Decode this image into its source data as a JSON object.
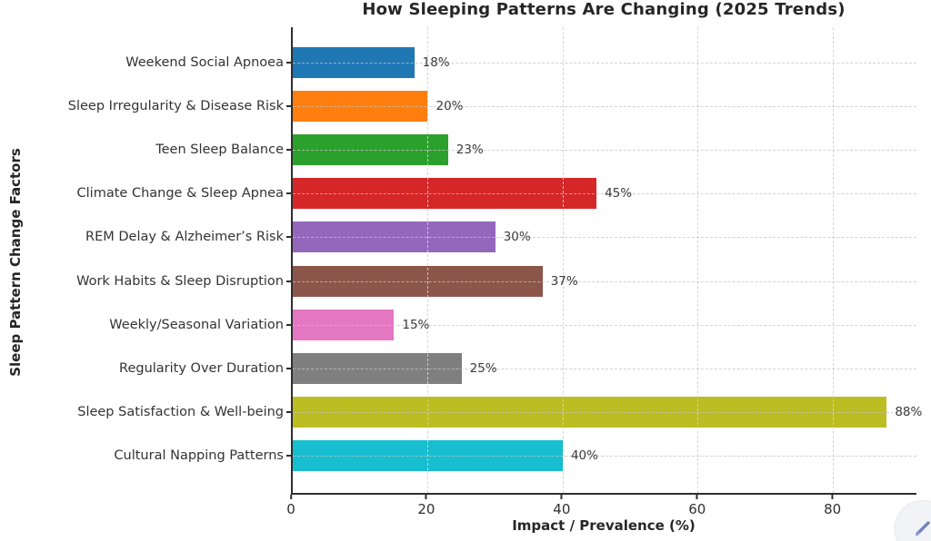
{
  "chart_data": {
    "type": "bar",
    "orientation": "horizontal",
    "title": "How Sleeping Patterns Are Changing (2025 Trends)",
    "xlabel": "Impact / Prevalence (%)",
    "ylabel": "Sleep Pattern Change Factors",
    "xlim": [
      0,
      92.4
    ],
    "xticks": [
      0,
      20,
      40,
      60,
      80
    ],
    "grid": "dashed-both-axes",
    "legend": "none",
    "categories": [
      "Weekend Social Apnoea",
      "Sleep Irregularity & Disease Risk",
      "Teen Sleep Balance",
      "Climate Change & Sleep Apnea",
      "REM Delay & Alzheimer’s Risk",
      "Work Habits & Sleep Disruption",
      "Weekly/Seasonal Variation",
      "Regularity Over Duration",
      "Sleep Satisfaction & Well-being",
      "Cultural Napping Patterns"
    ],
    "values": [
      18,
      20,
      23,
      45,
      30,
      37,
      15,
      25,
      88,
      40
    ],
    "value_labels": [
      "18%",
      "20%",
      "23%",
      "45%",
      "30%",
      "37%",
      "15%",
      "25%",
      "88%",
      "40%"
    ],
    "bar_colors": [
      "#1f77b4",
      "#ff7f0e",
      "#2ca02c",
      "#d62728",
      "#9467bd",
      "#8c564b",
      "#e377c2",
      "#7f7f7f",
      "#bcbd22",
      "#17becf"
    ],
    "bar_textures": [
      "solid",
      "solid",
      "solid",
      "solid",
      "solid",
      "solid",
      "solid",
      "noise",
      "solid",
      "solid"
    ]
  },
  "edit_button": {
    "icon": "pen-icon",
    "icon_color": "#7185c1",
    "background": "#f2f3f6"
  },
  "colors": {
    "axis": "#2e2e2e",
    "grid": "#d2d2d2",
    "title_text": "#262626",
    "label_text": "#333333",
    "value_text": "#3a3a3a",
    "background": "#ffffff"
  }
}
